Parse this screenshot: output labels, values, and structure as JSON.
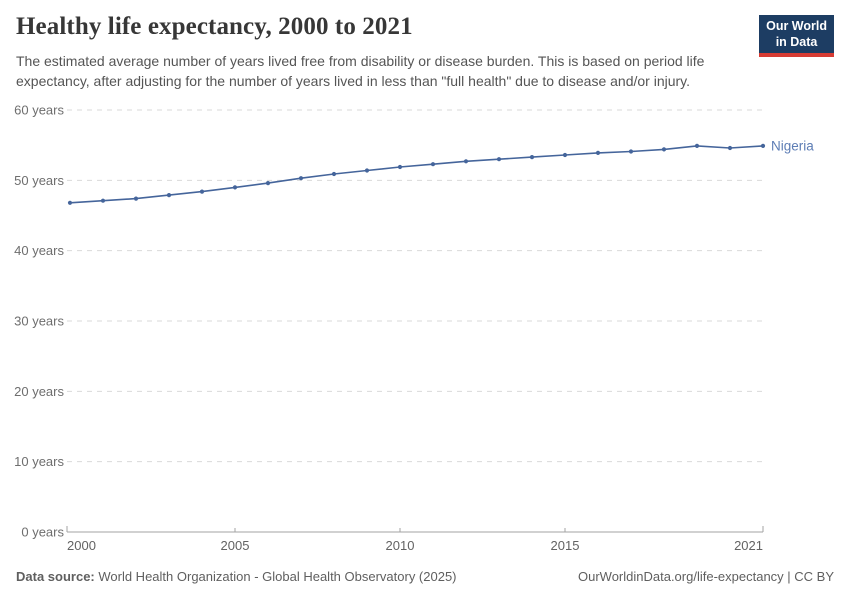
{
  "header": {
    "title": "Healthy life expectancy, 2000 to 2021",
    "subtitle": "The estimated average number of years lived free from disability or disease burden. This is based on period life expectancy, after adjusting for the number of years lived in less than \"full health\" due to disease and/or injury.",
    "logo": {
      "line1": "Our World",
      "line2": "in Data"
    }
  },
  "chart_data": {
    "type": "line",
    "title": "Healthy life expectancy, 2000 to 2021",
    "x": [
      2000,
      2001,
      2002,
      2003,
      2004,
      2005,
      2006,
      2007,
      2008,
      2009,
      2010,
      2011,
      2012,
      2013,
      2014,
      2015,
      2016,
      2017,
      2018,
      2019,
      2020,
      2021
    ],
    "series": [
      {
        "name": "Nigeria",
        "color": "#45659b",
        "label_color": "#5d7db5",
        "values": [
          46.8,
          47.1,
          47.4,
          47.9,
          48.4,
          49.0,
          49.6,
          50.3,
          50.9,
          51.4,
          51.9,
          52.3,
          52.7,
          53.0,
          53.3,
          53.6,
          53.9,
          54.1,
          54.4,
          54.9,
          54.6,
          54.9
        ]
      }
    ],
    "xlabel": "",
    "ylabel": "",
    "xlim": [
      2000,
      2021
    ],
    "ylim": [
      0,
      60
    ],
    "grid": "horizontal-dashed",
    "legend_position": "end-of-line",
    "yticks": [
      {
        "value": 0,
        "label": "0 years"
      },
      {
        "value": 10,
        "label": "10 years"
      },
      {
        "value": 20,
        "label": "20 years"
      },
      {
        "value": 30,
        "label": "30 years"
      },
      {
        "value": 40,
        "label": "40 years"
      },
      {
        "value": 50,
        "label": "50 years"
      },
      {
        "value": 60,
        "label": "60 years"
      }
    ],
    "xticks": [
      {
        "value": 2000,
        "label": "2000"
      },
      {
        "value": 2005,
        "label": "2005"
      },
      {
        "value": 2010,
        "label": "2010"
      },
      {
        "value": 2015,
        "label": "2015"
      },
      {
        "value": 2021,
        "label": "2021"
      }
    ]
  },
  "footer": {
    "datasource_label": "Data source:",
    "datasource_text": " World Health Organization - Global Health Observatory (2025)",
    "credit": "OurWorldinData.org/life-expectancy | CC BY"
  },
  "colors": {
    "page_bg": "#ffffff",
    "title": "#373737",
    "subtitle": "#555555",
    "grid": "#d9d9d9",
    "axis": "#a3a3a3",
    "y_tick_label": "#6e6e6e",
    "x_tick_label": "#636363",
    "line": "#45659b",
    "series_label": "#5d7db5",
    "footer_text": "#5f5f5f",
    "logo_bg": "#1d3d63",
    "logo_accent": "#d73c34"
  }
}
